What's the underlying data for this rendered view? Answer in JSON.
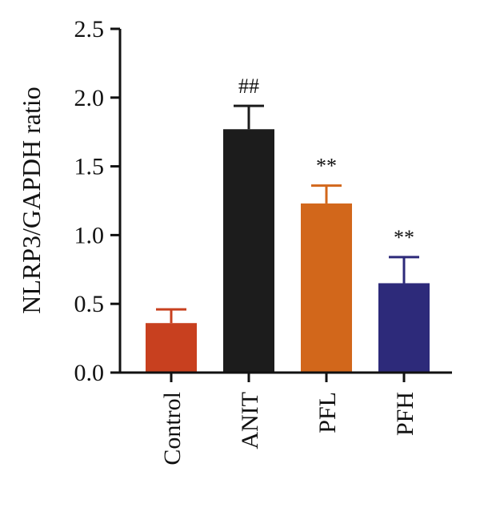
{
  "chart_data": {
    "type": "bar",
    "title": "",
    "xlabel": "",
    "ylabel": "NLRP3/GAPDH ratio",
    "ylim": [
      0,
      2.5
    ],
    "yticks": [
      "0.0",
      "0.5",
      "1.0",
      "1.5",
      "2.0",
      "2.5"
    ],
    "ytick_values": [
      0,
      0.5,
      1.0,
      1.5,
      2.0,
      2.5
    ],
    "grid": false,
    "categories": [
      "Control",
      "ANIT",
      "PFL",
      "PFH"
    ],
    "values": [
      0.36,
      1.77,
      1.23,
      0.65
    ],
    "errors": [
      0.1,
      0.17,
      0.13,
      0.19
    ],
    "significance": [
      "",
      "##",
      "**",
      "**"
    ],
    "colors": [
      "#C8401F",
      "#1C1C1C",
      "#D2671B",
      "#2D2A7A"
    ]
  }
}
